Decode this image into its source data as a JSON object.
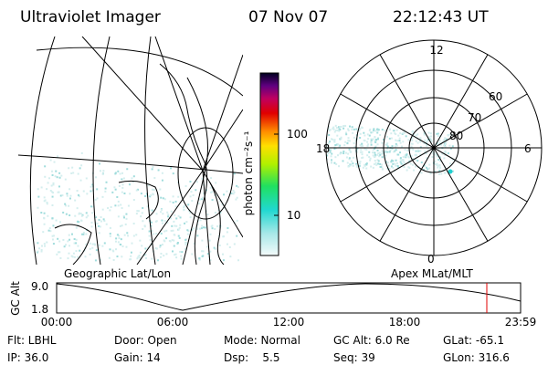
{
  "header": {
    "title": "Ultraviolet Imager",
    "date": "07 Nov 07",
    "time": "22:12:43 UT"
  },
  "map": {
    "label": "Geographic Lat/Lon"
  },
  "colorbar": {
    "label": "photon cm⁻²s⁻¹",
    "ticks": [
      "100",
      "10"
    ]
  },
  "polar": {
    "labels": [
      "12",
      "18",
      "6",
      "0",
      "60",
      "70",
      "80"
    ]
  },
  "altitude": {
    "axis_label": "GC Alt",
    "ticks": [
      "9.0",
      "1.8"
    ],
    "right_label": "Apex MLat/MLT",
    "times": [
      "00:00",
      "06:00",
      "12:00",
      "18:00",
      "23:59"
    ]
  },
  "status": {
    "rows": [
      [
        "Flt: LBHL",
        "Door: Open",
        "Mode: Normal",
        "GC Alt: 6.0 Re",
        "GLat: -65.1"
      ],
      [
        "IP: 36.0",
        "Gain: 14",
        "Dsp:    5.5",
        "Seq: 39",
        "GLon: 316.6"
      ]
    ]
  }
}
